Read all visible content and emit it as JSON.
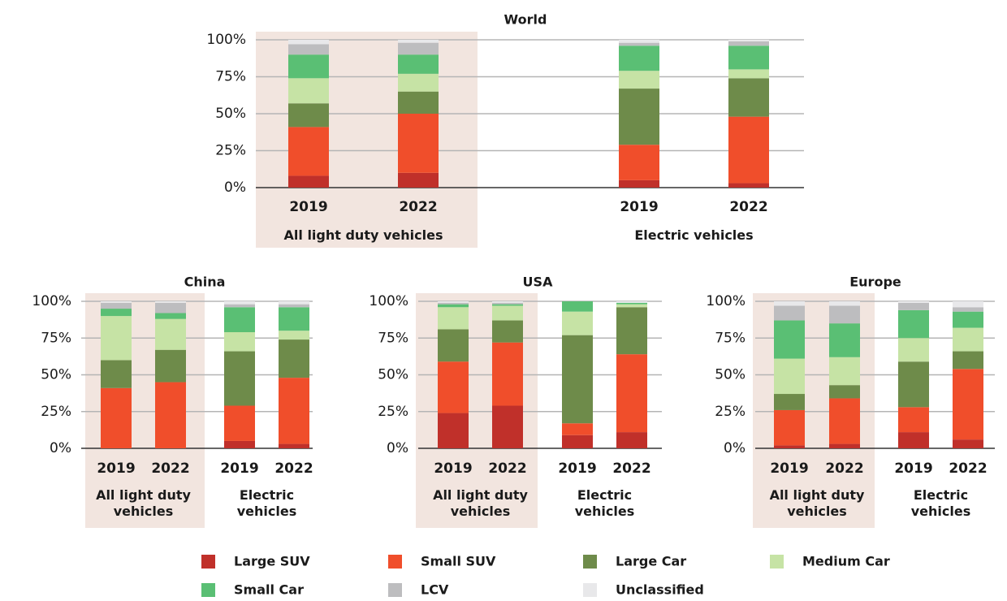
{
  "legend": [
    {
      "name": "Large SUV",
      "color": "#c0302a"
    },
    {
      "name": "Small SUV",
      "color": "#f04e2b"
    },
    {
      "name": "Large Car",
      "color": "#6e8b4a"
    },
    {
      "name": "Medium Car",
      "color": "#c6e3a5"
    },
    {
      "name": "Small Car",
      "color": "#5abf74"
    },
    {
      "name": "LCV",
      "color": "#bdbdbf"
    },
    {
      "name": "Unclassified",
      "color": "#e8e8ea"
    }
  ],
  "chart_data": [
    {
      "type": "stacked_bar",
      "title": "World",
      "groups": [
        {
          "label": "All light duty vehicles",
          "categories": [
            "2019",
            "2022"
          ],
          "shaded": true
        },
        {
          "label": "Electric vehicles",
          "categories": [
            "2019",
            "2022"
          ],
          "shaded": false
        }
      ],
      "ylim": [
        0,
        100
      ],
      "yticks": [
        {
          "value": 0,
          "label": "0%"
        },
        {
          "value": 25,
          "label": "25%"
        },
        {
          "value": 50,
          "label": "50%"
        },
        {
          "value": 75,
          "label": "75%"
        },
        {
          "value": 100,
          "label": "100%"
        }
      ],
      "grid": true,
      "series": [
        {
          "values": [
            8,
            10,
            5,
            3
          ]
        },
        {
          "values": [
            33,
            40,
            24,
            45
          ]
        },
        {
          "values": [
            16,
            15,
            38,
            26
          ]
        },
        {
          "values": [
            17,
            12,
            12,
            6
          ]
        },
        {
          "values": [
            16,
            13,
            17,
            16
          ]
        },
        {
          "values": [
            7,
            8,
            2,
            3
          ]
        },
        {
          "values": [
            3,
            2,
            2,
            1
          ]
        }
      ]
    },
    {
      "type": "stacked_bar",
      "title": "China",
      "groups": [
        {
          "label": "All light duty vehicles",
          "categories": [
            "2019",
            "2022"
          ],
          "shaded": true
        },
        {
          "label": "Electric vehicles",
          "categories": [
            "2019",
            "2022"
          ],
          "shaded": false
        }
      ],
      "ylim": [
        0,
        100
      ],
      "yticks": [
        {
          "value": 0,
          "label": "0%"
        },
        {
          "value": 25,
          "label": "25%"
        },
        {
          "value": 50,
          "label": "50%"
        },
        {
          "value": 75,
          "label": "75%"
        },
        {
          "value": 100,
          "label": "100%"
        }
      ],
      "grid": true,
      "series": [
        {
          "values": [
            0,
            0,
            5,
            3
          ]
        },
        {
          "values": [
            41,
            45,
            24,
            45
          ]
        },
        {
          "values": [
            19,
            22,
            37,
            26
          ]
        },
        {
          "values": [
            30,
            21,
            13,
            6
          ]
        },
        {
          "values": [
            5,
            4,
            17,
            16
          ]
        },
        {
          "values": [
            4,
            7,
            2,
            2
          ]
        },
        {
          "values": [
            1,
            1,
            2,
            2
          ]
        }
      ]
    },
    {
      "type": "stacked_bar",
      "title": "USA",
      "groups": [
        {
          "label": "All light duty vehicles",
          "categories": [
            "2019",
            "2022"
          ],
          "shaded": true
        },
        {
          "label": "Electric vehicles",
          "categories": [
            "2019",
            "2022"
          ],
          "shaded": false
        }
      ],
      "ylim": [
        0,
        100
      ],
      "yticks": [
        {
          "value": 0,
          "label": "0%"
        },
        {
          "value": 25,
          "label": "25%"
        },
        {
          "value": 50,
          "label": "50%"
        },
        {
          "value": 75,
          "label": "75%"
        },
        {
          "value": 100,
          "label": "100%"
        }
      ],
      "grid": true,
      "series": [
        {
          "values": [
            24,
            29,
            9,
            11
          ]
        },
        {
          "values": [
            35,
            43,
            8,
            53
          ]
        },
        {
          "values": [
            22,
            15,
            60,
            32
          ]
        },
        {
          "values": [
            15,
            10,
            16,
            2
          ]
        },
        {
          "values": [
            2,
            1,
            7,
            1
          ]
        },
        {
          "values": [
            1,
            1,
            0,
            0
          ]
        },
        {
          "values": [
            1,
            1,
            0,
            1
          ]
        }
      ]
    },
    {
      "type": "stacked_bar",
      "title": "Europe",
      "groups": [
        {
          "label": "All light duty vehicles",
          "categories": [
            "2019",
            "2022"
          ],
          "shaded": true
        },
        {
          "label": "Electric vehicles",
          "categories": [
            "2019",
            "2022"
          ],
          "shaded": false
        }
      ],
      "ylim": [
        0,
        100
      ],
      "yticks": [
        {
          "value": 0,
          "label": "0%"
        },
        {
          "value": 25,
          "label": "25%"
        },
        {
          "value": 50,
          "label": "50%"
        },
        {
          "value": 75,
          "label": "75%"
        },
        {
          "value": 100,
          "label": "100%"
        }
      ],
      "grid": true,
      "series": [
        {
          "values": [
            2,
            3,
            11,
            6
          ]
        },
        {
          "values": [
            24,
            31,
            17,
            48
          ]
        },
        {
          "values": [
            11,
            9,
            31,
            12
          ]
        },
        {
          "values": [
            24,
            19,
            16,
            16
          ]
        },
        {
          "values": [
            26,
            23,
            19,
            11
          ]
        },
        {
          "values": [
            10,
            12,
            5,
            3
          ]
        },
        {
          "values": [
            3,
            3,
            1,
            4
          ]
        }
      ]
    }
  ]
}
